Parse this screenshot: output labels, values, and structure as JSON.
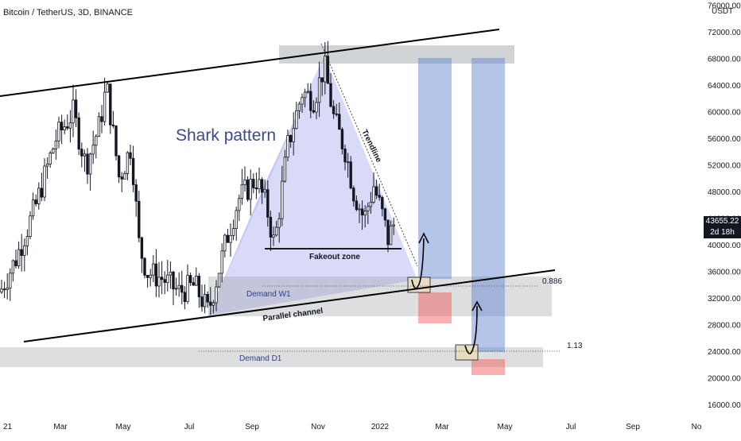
{
  "header": {
    "title": "Bitcoin / TetherUS, 3D, BINANCE"
  },
  "price_scale": {
    "currency": "USDT"
  },
  "price_label": {
    "price": "43655.22",
    "countdown": "2d 18h"
  },
  "chart_data": {
    "type": "candlestick",
    "title": "Bitcoin / TetherUS, 3D, BINANCE",
    "y_tick_labels": [
      "76000.00",
      "72000.00",
      "68000.00",
      "64000.00",
      "60000.00",
      "56000.00",
      "52000.00",
      "48000.00",
      "44000.00",
      "40000.00",
      "36000.00",
      "32000.00",
      "28000.00",
      "24000.00",
      "20000.00",
      "16000.00"
    ],
    "x_tick_labels": [
      "21",
      "Mar",
      "May",
      "Jul",
      "Sep",
      "Nov",
      "2022",
      "Mar",
      "May",
      "Jul",
      "Sep",
      "No"
    ],
    "ylim": [
      15000,
      78500
    ],
    "last_price": 43655.22,
    "grid": false,
    "annotations": {
      "pattern_title": "Shark pattern",
      "trendline": "Trendline",
      "fakeout": "Fakeout zone",
      "parallel": "Parallel channel",
      "demand_w1": "Demand W1",
      "demand_d1": "Demand D1",
      "fib_1": "0.886",
      "fib_2": "1.13"
    },
    "colors": {
      "candle": "#131722",
      "harmonic_fill": "#9c9cec",
      "zone_gray": "#9aa0a6",
      "target_blue": "#5b7fd1",
      "stop_red": "#ef5350",
      "entry_box": "#e8dcc0"
    }
  }
}
